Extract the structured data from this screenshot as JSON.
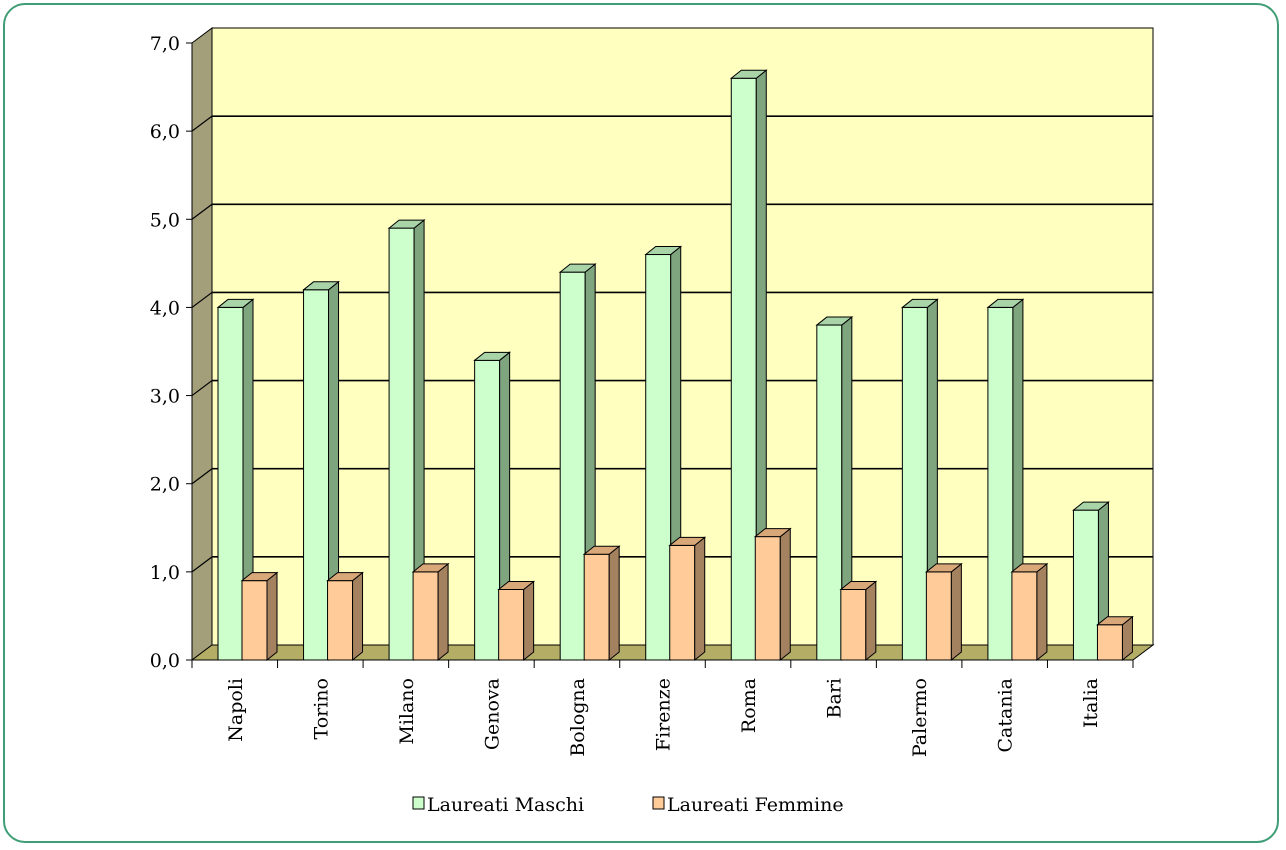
{
  "chart_data": {
    "type": "bar",
    "categories": [
      "Napoli",
      "Torino",
      "Milano",
      "Genova",
      "Bologna",
      "Firenze",
      "Roma",
      "Bari",
      "Palermo",
      "Catania",
      "Italia"
    ],
    "series": [
      {
        "name": "Laureati Maschi",
        "values": [
          4.0,
          4.2,
          4.9,
          3.4,
          4.4,
          4.6,
          6.6,
          3.8,
          4.0,
          4.0,
          1.7
        ],
        "color": "#ccffcc",
        "side_color": "#7fa57f",
        "top_color": "#a8d4a8"
      },
      {
        "name": "Laureati Femmine",
        "values": [
          0.9,
          0.9,
          1.0,
          0.8,
          1.2,
          1.3,
          1.4,
          0.8,
          1.0,
          1.0,
          0.4
        ],
        "color": "#ffcc99",
        "side_color": "#a5825f",
        "top_color": "#d9a878"
      }
    ],
    "y_ticks": [
      "0,0",
      "1,0",
      "2,0",
      "3,0",
      "4,0",
      "5,0",
      "6,0",
      "7,0"
    ],
    "ylim": [
      0,
      7
    ],
    "grid": true,
    "legend": "bottom",
    "wall_color": "#ffffc0",
    "side_wall_color": "#a39f7b",
    "floor_color": "#b3ad66"
  }
}
